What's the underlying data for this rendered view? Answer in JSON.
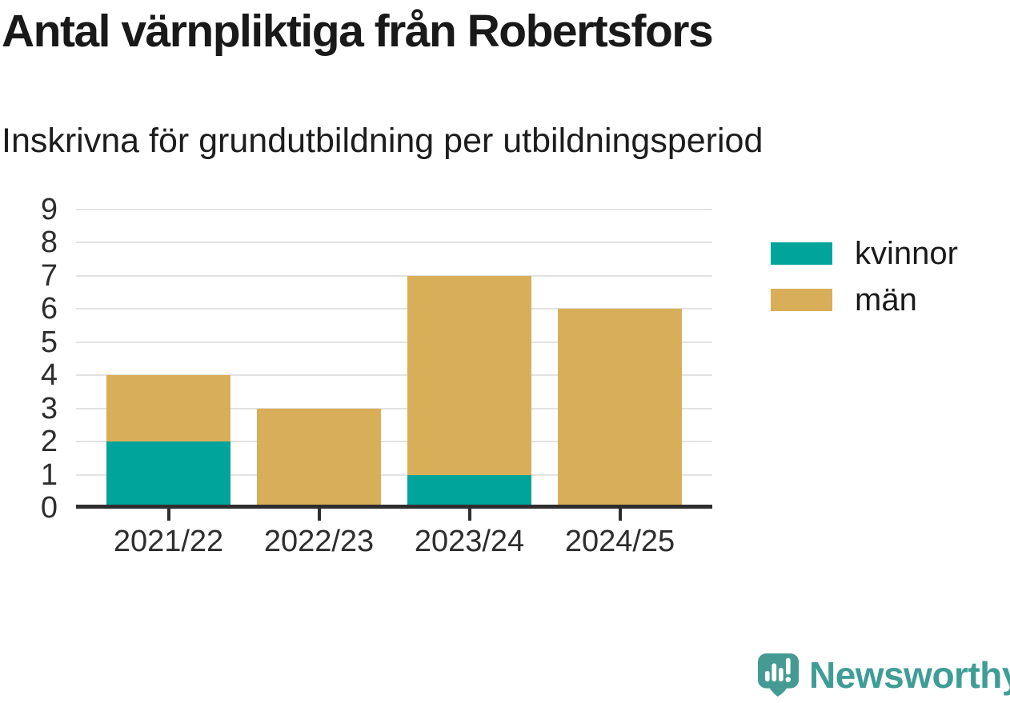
{
  "title": "Antal värnpliktiga från Robertsfors",
  "subtitle": "Inskrivna för grundutbildning per utbildningsperiod",
  "chart_data": {
    "type": "bar",
    "stacked": true,
    "title": "Antal värnpliktiga från Robertsfors",
    "subtitle": "Inskrivna för grundutbildning per utbildningsperiod",
    "categories": [
      "2021/22",
      "2022/23",
      "2023/24",
      "2024/25"
    ],
    "series": [
      {
        "name": "kvinnor",
        "color": "#00a49b",
        "values": [
          2,
          0,
          1,
          0
        ]
      },
      {
        "name": "män",
        "color": "#d9ae58",
        "values": [
          2,
          3,
          6,
          6
        ]
      }
    ],
    "totals": [
      4,
      3,
      7,
      6
    ],
    "xlabel": "",
    "ylabel": "",
    "ylim": [
      0,
      9
    ],
    "yticks": [
      0,
      1,
      2,
      3,
      4,
      5,
      6,
      7,
      8,
      9
    ],
    "grid": true,
    "legend_position": "right"
  },
  "branding": {
    "logo_text": "Newsworthy",
    "logo_icon": "newsworthy-bubble-chart-icon",
    "logo_color": "#3f9d96"
  },
  "colors": {
    "kvinnor": "#00a49b",
    "man": "#d9ae58",
    "gridline": "#e2e2e2",
    "axis_line": "#2e2e2e",
    "tick_text": "#2d2d2d",
    "heading_text": "#191919",
    "background": "#ffffff"
  }
}
